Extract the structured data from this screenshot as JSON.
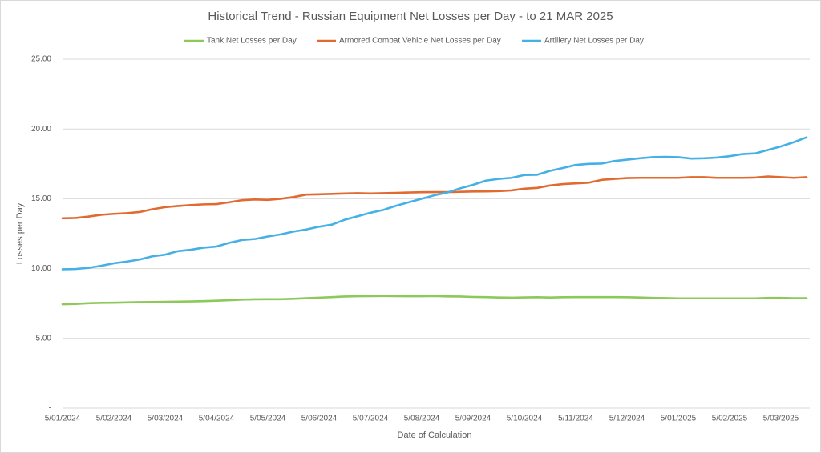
{
  "chart_data": {
    "type": "line",
    "title": "Historical Trend - Russian Equipment Net Losses per Day - to 21 MAR 2025",
    "x_label": "Date of Calculation",
    "y_label": "Losses per Day",
    "categories": [
      "5/01/2024",
      null,
      null,
      null,
      "5/02/2024",
      null,
      null,
      null,
      "5/03/2024",
      null,
      null,
      null,
      "5/04/2024",
      null,
      null,
      null,
      "5/05/2024",
      null,
      null,
      null,
      "5/06/2024",
      null,
      null,
      null,
      "5/07/2024",
      null,
      null,
      null,
      "5/08/2024",
      null,
      null,
      null,
      "5/09/2024",
      null,
      null,
      null,
      "5/10/2024",
      null,
      null,
      null,
      "5/11/2024",
      null,
      null,
      null,
      "5/12/2024",
      null,
      null,
      null,
      "5/01/2025",
      null,
      null,
      null,
      "5/02/2025",
      null,
      null,
      null,
      "5/03/2025",
      null,
      null
    ],
    "series": [
      {
        "name": "Tank Net Losses per Day",
        "color": "#8cc95a",
        "values": [
          7.45,
          7.47,
          7.52,
          7.55,
          7.56,
          7.58,
          7.6,
          7.61,
          7.62,
          7.64,
          7.65,
          7.67,
          7.7,
          7.74,
          7.78,
          7.8,
          7.81,
          7.81,
          7.84,
          7.88,
          7.92,
          7.96,
          8.0,
          8.02,
          8.03,
          8.04,
          8.03,
          8.02,
          8.02,
          8.04,
          8.01,
          8.0,
          7.97,
          7.96,
          7.93,
          7.92,
          7.94,
          7.95,
          7.93,
          7.95,
          7.96,
          7.96,
          7.96,
          7.96,
          7.95,
          7.93,
          7.9,
          7.89,
          7.87,
          7.87,
          7.87,
          7.87,
          7.87,
          7.87,
          7.87,
          7.9,
          7.9,
          7.88,
          7.88
        ]
      },
      {
        "name": "Armored Combat Vehicle Net Losses per Day",
        "color": "#e06a30",
        "values": [
          13.6,
          13.62,
          13.72,
          13.85,
          13.92,
          13.97,
          14.05,
          14.25,
          14.4,
          14.48,
          14.55,
          14.6,
          14.62,
          14.75,
          14.9,
          14.95,
          14.92,
          15.0,
          15.12,
          15.3,
          15.32,
          15.35,
          15.38,
          15.4,
          15.38,
          15.4,
          15.42,
          15.45,
          15.47,
          15.48,
          15.48,
          15.5,
          15.52,
          15.53,
          15.55,
          15.6,
          15.72,
          15.78,
          15.95,
          16.05,
          16.1,
          16.15,
          16.35,
          16.42,
          16.48,
          16.5,
          16.5,
          16.5,
          16.5,
          16.55,
          16.55,
          16.5,
          16.5,
          16.5,
          16.52,
          16.6,
          16.55,
          16.5,
          16.55
        ]
      },
      {
        "name": "Artillery Net Losses per Day",
        "color": "#45b0e5",
        "values": [
          9.95,
          9.97,
          10.05,
          10.2,
          10.38,
          10.5,
          10.65,
          10.88,
          11.0,
          11.25,
          11.35,
          11.5,
          11.58,
          11.85,
          12.05,
          12.12,
          12.3,
          12.45,
          12.65,
          12.8,
          13.0,
          13.15,
          13.5,
          13.75,
          14.0,
          14.2,
          14.5,
          14.75,
          15.0,
          15.25,
          15.45,
          15.75,
          16.0,
          16.3,
          16.42,
          16.5,
          16.7,
          16.72,
          17.0,
          17.2,
          17.42,
          17.5,
          17.52,
          17.7,
          17.8,
          17.9,
          17.98,
          18.0,
          17.98,
          17.88,
          17.9,
          17.95,
          18.05,
          18.2,
          18.25,
          18.5,
          18.75,
          19.05,
          19.4
        ]
      }
    ],
    "ylim": [
      0,
      25
    ],
    "yticks": [
      {
        "value": 0,
        "label": "-"
      },
      {
        "value": 5,
        "label": "5.00"
      },
      {
        "value": 10,
        "label": "10.00"
      },
      {
        "value": 15,
        "label": "15.00"
      },
      {
        "value": 20,
        "label": "20.00"
      },
      {
        "value": 25,
        "label": "25.00"
      }
    ],
    "grid": true
  }
}
